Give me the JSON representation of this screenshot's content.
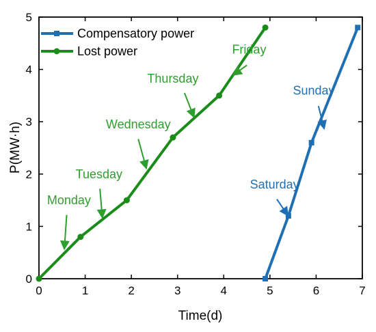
{
  "chart_data": {
    "type": "line",
    "xlabel": "Time(d)",
    "ylabel": "P(MW·h)",
    "xlim": [
      0,
      7
    ],
    "ylim": [
      0,
      5
    ],
    "xticks": [
      "0",
      "1",
      "2",
      "3",
      "4",
      "5",
      "6",
      "7"
    ],
    "yticks": [
      "0",
      "1",
      "2",
      "3",
      "4",
      "5"
    ],
    "grid": false,
    "legend_position": "top-left",
    "series": [
      {
        "name": "Compensatory power",
        "color": "#1f6fb4",
        "marker": "square",
        "x": [
          4.9,
          5.4,
          5.9,
          6.9
        ],
        "y": [
          0.0,
          1.2,
          2.6,
          4.8
        ]
      },
      {
        "name": "Lost power",
        "color": "#1a8c1a",
        "marker": "circle",
        "x": [
          0,
          0.9,
          1.9,
          2.9,
          3.9,
          4.9
        ],
        "y": [
          0.0,
          0.8,
          1.5,
          2.7,
          3.5,
          4.8
        ]
      }
    ],
    "annotations": [
      {
        "text": "Monday",
        "color": "#2e9e2e",
        "text_x": 0.65,
        "text_y": 1.42,
        "arrow_from": [
          0.6,
          1.22
        ],
        "arrow_to": [
          0.55,
          0.58
        ]
      },
      {
        "text": "Tuesday",
        "color": "#2e9e2e",
        "text_x": 1.3,
        "text_y": 1.92,
        "arrow_from": [
          1.32,
          1.72
        ],
        "arrow_to": [
          1.37,
          1.18
        ]
      },
      {
        "text": "Wednesday",
        "color": "#2e9e2e",
        "text_x": 2.15,
        "text_y": 2.87,
        "arrow_from": [
          2.15,
          2.67
        ],
        "arrow_to": [
          2.32,
          2.12
        ]
      },
      {
        "text": "Thursday",
        "color": "#2e9e2e",
        "text_x": 2.9,
        "text_y": 3.75,
        "arrow_from": [
          3.15,
          3.55
        ],
        "arrow_to": [
          3.35,
          3.1
        ]
      },
      {
        "text": "Friday",
        "color": "#2e9e2e",
        "text_x": 4.55,
        "text_y": 4.3,
        "arrow_from": [
          4.5,
          4.08
        ],
        "arrow_to": [
          4.22,
          3.9
        ]
      },
      {
        "text": "Sunday",
        "color": "#1f6fb4",
        "text_x": 5.95,
        "text_y": 3.52,
        "arrow_from": [
          6.05,
          3.3
        ],
        "arrow_to": [
          6.17,
          2.88
        ]
      },
      {
        "text": "Saturday",
        "color": "#1f6fb4",
        "text_x": 5.1,
        "text_y": 1.72,
        "arrow_from": [
          5.15,
          1.52
        ],
        "arrow_to": [
          5.38,
          1.22
        ]
      }
    ]
  }
}
